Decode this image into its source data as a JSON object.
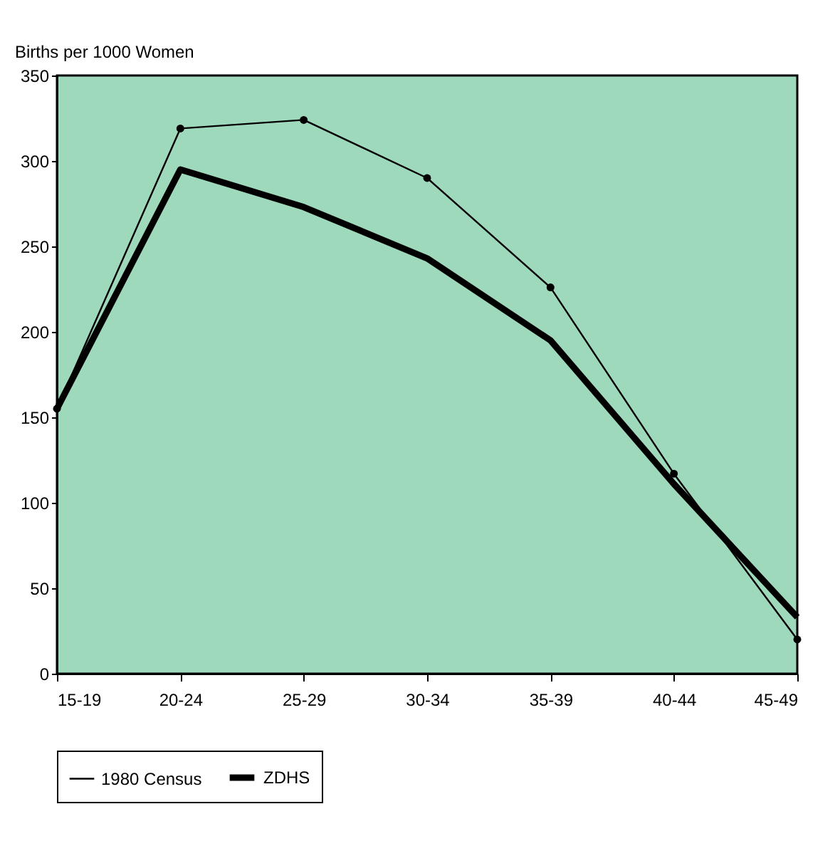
{
  "chart_data": {
    "type": "line",
    "ylabel": "Births per 1000 Women",
    "categories": [
      "15-19",
      "20-24",
      "25-29",
      "30-34",
      "35-39",
      "40-44",
      "45-49"
    ],
    "ylim": [
      0,
      350
    ],
    "yticks": [
      0,
      50,
      100,
      150,
      200,
      250,
      300,
      350
    ],
    "grid": false,
    "legend": "bottom",
    "series": [
      {
        "name": "1980 Census",
        "color": "#000000",
        "marker": "circle",
        "values": [
          155,
          319,
          324,
          290,
          226,
          117,
          20
        ]
      },
      {
        "name": "ZDHS",
        "color": "#000000",
        "marker": "none",
        "values": [
          155,
          295,
          273,
          243,
          195,
          111,
          33
        ]
      }
    ]
  }
}
